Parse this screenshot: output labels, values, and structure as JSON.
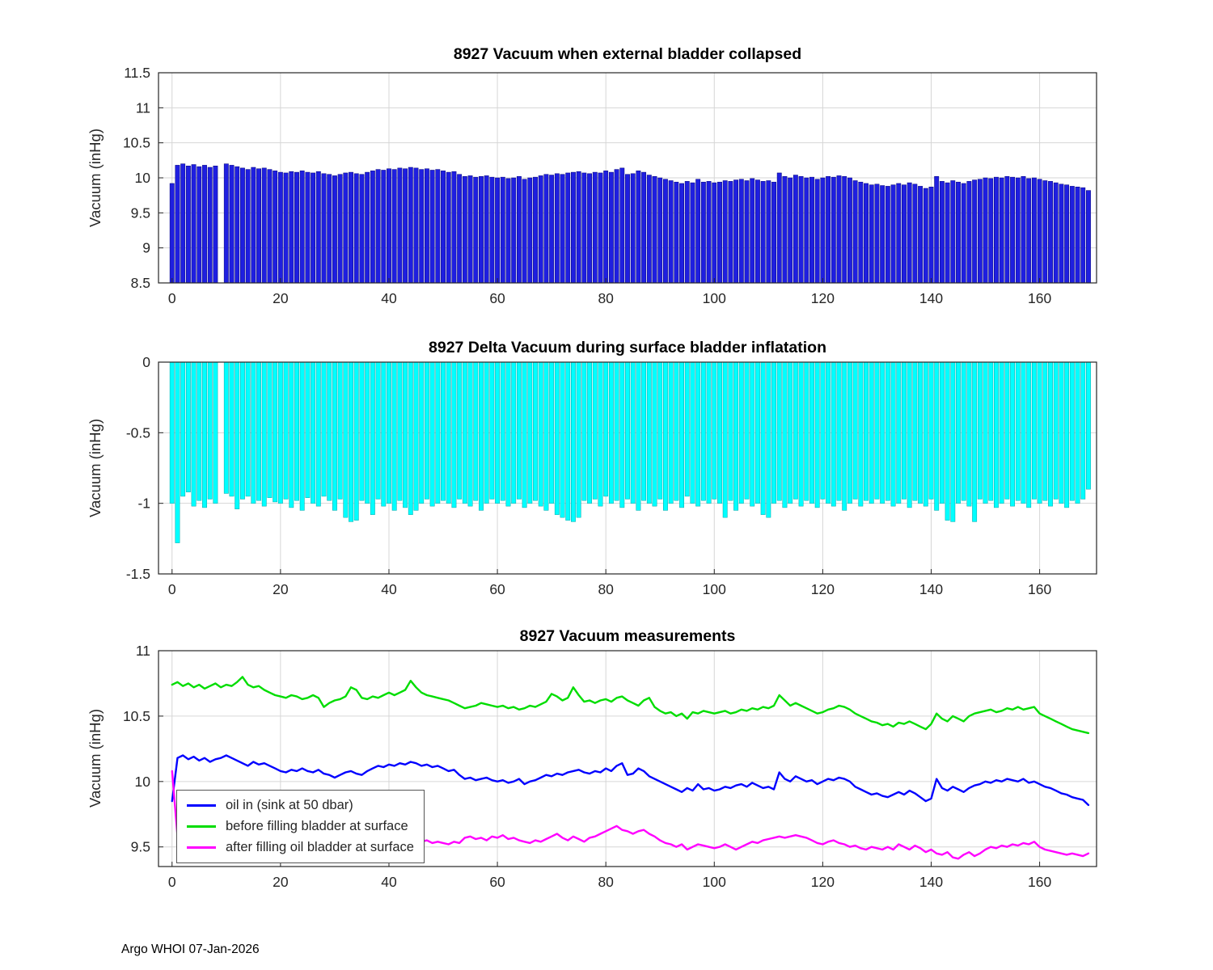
{
  "style": {
    "background": "#ffffff",
    "grid_color": "#d6d6d6",
    "axis_color": "#262626",
    "title_color": "#000000"
  },
  "footer": {
    "text": "Argo WHOI 07-Jan-2026"
  },
  "chart_data": [
    {
      "type": "bar",
      "title": "8927 Vacuum when external bladder collapsed",
      "ylabel": "Vacuum (inHg)",
      "xlabel": "",
      "xlim": [
        -2.5,
        170.5
      ],
      "ylim": [
        8.5,
        11.5
      ],
      "xticks": [
        0,
        20,
        40,
        60,
        80,
        100,
        120,
        140,
        160
      ],
      "yticks": [
        8.5,
        9,
        9.5,
        10,
        10.5,
        11,
        11.5
      ],
      "grid": true,
      "baseline": 8.5,
      "color": "#1f1fe0",
      "edge_color": "#00007a",
      "values": [
        9.92,
        10.18,
        10.2,
        10.17,
        10.19,
        10.16,
        10.18,
        10.15,
        10.17,
        null,
        10.2,
        10.18,
        10.16,
        10.14,
        10.12,
        10.15,
        10.13,
        10.14,
        10.12,
        10.1,
        10.08,
        10.07,
        10.09,
        10.08,
        10.1,
        10.08,
        10.07,
        10.09,
        10.06,
        10.05,
        10.03,
        10.05,
        10.07,
        10.08,
        10.06,
        10.05,
        10.08,
        10.1,
        10.12,
        10.11,
        10.13,
        10.12,
        10.14,
        10.13,
        10.15,
        10.14,
        10.12,
        10.13,
        10.11,
        10.12,
        10.1,
        10.08,
        10.09,
        10.05,
        10.02,
        10.03,
        10.01,
        10.02,
        10.03,
        10.01,
        10.0,
        10.01,
        9.99,
        10.0,
        10.02,
        9.98,
        10.0,
        10.01,
        10.03,
        10.05,
        10.04,
        10.06,
        10.05,
        10.07,
        10.08,
        10.09,
        10.07,
        10.06,
        10.08,
        10.07,
        10.1,
        10.08,
        10.12,
        10.14,
        10.05,
        10.06,
        10.1,
        10.08,
        10.04,
        10.02,
        10.0,
        9.98,
        9.96,
        9.94,
        9.92,
        9.95,
        9.93,
        9.98,
        9.94,
        9.95,
        9.93,
        9.94,
        9.96,
        9.95,
        9.97,
        9.98,
        9.96,
        9.99,
        9.97,
        9.95,
        9.96,
        9.94,
        10.07,
        10.02,
        10.0,
        10.04,
        10.02,
        10.0,
        10.01,
        9.98,
        10.0,
        10.02,
        10.01,
        10.03,
        10.02,
        10.0,
        9.96,
        9.94,
        9.92,
        9.9,
        9.91,
        9.89,
        9.88,
        9.9,
        9.92,
        9.9,
        9.93,
        9.91,
        9.88,
        9.85,
        9.87,
        10.02,
        9.95,
        9.93,
        9.96,
        9.94,
        9.92,
        9.95,
        9.97,
        9.98,
        10.0,
        9.99,
        10.01,
        10.0,
        10.02,
        10.01,
        10.0,
        10.02,
        9.99,
        10.0,
        9.98,
        9.96,
        9.95,
        9.93,
        9.91,
        9.9,
        9.88,
        9.87,
        9.86,
        9.82
      ]
    },
    {
      "type": "bar",
      "title": "8927 Delta Vacuum during surface bladder inflatation",
      "ylabel": "Vacuum (inHg)",
      "xlabel": "",
      "xlim": [
        -2.5,
        170.5
      ],
      "ylim": [
        -1.5,
        0
      ],
      "xticks": [
        0,
        20,
        40,
        60,
        80,
        100,
        120,
        140,
        160
      ],
      "yticks": [
        0,
        -0.5,
        -1,
        -1.5
      ],
      "grid": true,
      "baseline": 0,
      "color": "#00ffff",
      "edge_color": "#00a8a8",
      "values": [
        -1.0,
        -1.28,
        -0.95,
        -0.92,
        -1.02,
        -0.98,
        -1.03,
        -0.97,
        -1.0,
        null,
        -0.93,
        -0.95,
        -1.04,
        -0.97,
        -0.95,
        -1.0,
        -0.98,
        -1.02,
        -0.96,
        -0.99,
        -1.0,
        -0.97,
        -1.03,
        -0.98,
        -1.05,
        -0.96,
        -1.0,
        -1.02,
        -0.95,
        -0.98,
        -1.05,
        -0.97,
        -1.1,
        -1.13,
        -1.12,
        -0.98,
        -1.0,
        -1.08,
        -0.97,
        -1.02,
        -1.0,
        -1.05,
        -0.98,
        -1.03,
        -1.08,
        -1.05,
        -1.0,
        -0.97,
        -1.02,
        -1.0,
        -0.98,
        -1.0,
        -1.03,
        -0.97,
        -1.0,
        -1.02,
        -0.98,
        -1.05,
        -1.0,
        -0.97,
        -1.0,
        -0.98,
        -1.02,
        -1.0,
        -0.97,
        -1.03,
        -1.0,
        -0.98,
        -1.02,
        -1.05,
        -1.0,
        -1.08,
        -1.1,
        -1.12,
        -1.13,
        -1.1,
        -0.98,
        -1.0,
        -0.97,
        -1.02,
        -0.95,
        -1.0,
        -0.98,
        -1.03,
        -0.97,
        -1.0,
        -1.05,
        -0.98,
        -1.0,
        -1.02,
        -0.97,
        -1.05,
        -1.0,
        -0.98,
        -1.03,
        -0.95,
        -1.0,
        -1.02,
        -0.98,
        -1.0,
        -0.97,
        -1.0,
        -1.1,
        -0.98,
        -1.05,
        -1.0,
        -0.97,
        -1.02,
        -1.0,
        -1.08,
        -1.1,
        -1.0,
        -0.98,
        -1.03,
        -1.0,
        -0.97,
        -1.02,
        -0.98,
        -1.0,
        -1.03,
        -0.97,
        -1.0,
        -1.02,
        -0.98,
        -1.05,
        -1.0,
        -0.97,
        -1.02,
        -0.98,
        -1.0,
        -0.97,
        -1.0,
        -0.98,
        -1.02,
        -1.0,
        -0.97,
        -1.03,
        -0.98,
        -1.0,
        -1.02,
        -0.97,
        -1.05,
        -1.0,
        -1.12,
        -1.13,
        -1.0,
        -0.98,
        -1.02,
        -1.13,
        -0.97,
        -1.0,
        -0.98,
        -1.03,
        -1.0,
        -0.97,
        -1.02,
        -0.98,
        -1.0,
        -1.03,
        -0.97,
        -1.0,
        -0.98,
        -1.02,
        -0.97,
        -1.0,
        -1.03,
        -0.98,
        -1.0,
        -0.97,
        -0.9
      ]
    },
    {
      "type": "line",
      "title": "8927 Vacuum measurements",
      "ylabel": "Vacuum (inHg)",
      "xlabel": "",
      "xlim": [
        -2.5,
        170.5
      ],
      "ylim": [
        9.35,
        11
      ],
      "xticks": [
        0,
        20,
        40,
        60,
        80,
        100,
        120,
        140,
        160
      ],
      "yticks": [
        9.5,
        10,
        10.5,
        11
      ],
      "grid": true,
      "legend_position": "southwest",
      "series": [
        {
          "name": "oil in (sink at 50 dbar)",
          "color": "#0000ff",
          "values": [
            9.85,
            10.18,
            10.2,
            10.17,
            10.19,
            10.16,
            10.18,
            10.15,
            10.17,
            10.18,
            10.2,
            10.18,
            10.16,
            10.14,
            10.12,
            10.15,
            10.13,
            10.14,
            10.12,
            10.1,
            10.08,
            10.07,
            10.09,
            10.08,
            10.1,
            10.08,
            10.07,
            10.09,
            10.06,
            10.05,
            10.03,
            10.05,
            10.07,
            10.08,
            10.06,
            10.05,
            10.08,
            10.1,
            10.12,
            10.11,
            10.13,
            10.12,
            10.14,
            10.13,
            10.15,
            10.14,
            10.12,
            10.13,
            10.11,
            10.12,
            10.1,
            10.08,
            10.09,
            10.05,
            10.02,
            10.03,
            10.01,
            10.02,
            10.03,
            10.01,
            10.0,
            10.01,
            9.99,
            10.0,
            10.02,
            9.98,
            10.0,
            10.01,
            10.03,
            10.05,
            10.04,
            10.06,
            10.05,
            10.07,
            10.08,
            10.09,
            10.07,
            10.06,
            10.08,
            10.07,
            10.1,
            10.08,
            10.12,
            10.14,
            10.05,
            10.06,
            10.1,
            10.08,
            10.04,
            10.02,
            10.0,
            9.98,
            9.96,
            9.94,
            9.92,
            9.95,
            9.93,
            9.98,
            9.94,
            9.95,
            9.93,
            9.94,
            9.96,
            9.95,
            9.97,
            9.98,
            9.96,
            9.99,
            9.97,
            9.95,
            9.96,
            9.94,
            10.07,
            10.02,
            10.0,
            10.04,
            10.02,
            10.0,
            10.01,
            9.98,
            10.0,
            10.02,
            10.01,
            10.03,
            10.02,
            10.0,
            9.96,
            9.94,
            9.92,
            9.9,
            9.91,
            9.89,
            9.88,
            9.9,
            9.92,
            9.9,
            9.93,
            9.91,
            9.88,
            9.85,
            9.87,
            10.02,
            9.95,
            9.93,
            9.96,
            9.94,
            9.92,
            9.95,
            9.97,
            9.98,
            10.0,
            9.99,
            10.01,
            10.0,
            10.02,
            10.01,
            10.0,
            10.02,
            9.99,
            10.0,
            9.98,
            9.96,
            9.95,
            9.93,
            9.91,
            9.9,
            9.88,
            9.87,
            9.86,
            9.82
          ]
        },
        {
          "name": "before filling bladder at surface",
          "color": "#00dd00",
          "values": [
            10.74,
            10.76,
            10.73,
            10.75,
            10.72,
            10.74,
            10.71,
            10.73,
            10.75,
            10.72,
            10.74,
            10.73,
            10.76,
            10.8,
            10.74,
            10.72,
            10.73,
            10.7,
            10.68,
            10.66,
            10.65,
            10.64,
            10.66,
            10.65,
            10.63,
            10.64,
            10.66,
            10.64,
            10.57,
            10.6,
            10.62,
            10.63,
            10.65,
            10.72,
            10.7,
            10.64,
            10.63,
            10.65,
            10.64,
            10.66,
            10.68,
            10.66,
            10.68,
            10.7,
            10.77,
            10.72,
            10.68,
            10.66,
            10.65,
            10.64,
            10.63,
            10.62,
            10.6,
            10.58,
            10.56,
            10.57,
            10.58,
            10.6,
            10.59,
            10.58,
            10.57,
            10.58,
            10.56,
            10.57,
            10.55,
            10.56,
            10.58,
            10.57,
            10.59,
            10.61,
            10.67,
            10.65,
            10.62,
            10.64,
            10.72,
            10.66,
            10.61,
            10.62,
            10.6,
            10.62,
            10.63,
            10.61,
            10.64,
            10.65,
            10.62,
            10.6,
            10.58,
            10.62,
            10.64,
            10.57,
            10.54,
            10.52,
            10.53,
            10.5,
            10.52,
            10.48,
            10.53,
            10.52,
            10.54,
            10.53,
            10.52,
            10.53,
            10.54,
            10.52,
            10.53,
            10.55,
            10.54,
            10.56,
            10.55,
            10.57,
            10.56,
            10.58,
            10.66,
            10.62,
            10.58,
            10.6,
            10.58,
            10.56,
            10.54,
            10.52,
            10.53,
            10.55,
            10.56,
            10.58,
            10.57,
            10.55,
            10.52,
            10.5,
            10.48,
            10.46,
            10.45,
            10.43,
            10.44,
            10.42,
            10.45,
            10.44,
            10.46,
            10.44,
            10.42,
            10.4,
            10.44,
            10.52,
            10.48,
            10.46,
            10.5,
            10.48,
            10.46,
            10.5,
            10.52,
            10.53,
            10.54,
            10.55,
            10.53,
            10.54,
            10.56,
            10.55,
            10.57,
            10.55,
            10.56,
            10.57,
            10.52,
            10.5,
            10.48,
            10.46,
            10.44,
            10.42,
            10.4,
            10.39,
            10.38,
            10.37
          ]
        },
        {
          "name": "after filling oil bladder at surface",
          "color": "#ff00ff",
          "values": [
            10.08,
            9.58,
            9.57,
            9.56,
            9.58,
            9.57,
            9.55,
            9.57,
            9.56,
            9.58,
            9.57,
            9.58,
            9.56,
            9.59,
            9.57,
            9.55,
            9.56,
            9.54,
            9.55,
            9.56,
            9.55,
            9.54,
            9.56,
            9.55,
            9.53,
            9.54,
            9.55,
            9.53,
            9.52,
            9.54,
            9.53,
            9.55,
            9.54,
            9.52,
            9.5,
            9.53,
            9.54,
            9.56,
            9.55,
            9.54,
            9.55,
            9.56,
            9.54,
            9.55,
            9.57,
            9.56,
            9.54,
            9.55,
            9.53,
            9.54,
            9.53,
            9.52,
            9.54,
            9.53,
            9.57,
            9.58,
            9.56,
            9.57,
            9.55,
            9.58,
            9.57,
            9.59,
            9.56,
            9.57,
            9.55,
            9.54,
            9.53,
            9.55,
            9.54,
            9.56,
            9.58,
            9.6,
            9.57,
            9.55,
            9.58,
            9.56,
            9.54,
            9.57,
            9.58,
            9.6,
            9.62,
            9.64,
            9.66,
            9.63,
            9.62,
            9.6,
            9.62,
            9.63,
            9.6,
            9.58,
            9.55,
            9.53,
            9.52,
            9.5,
            9.52,
            9.48,
            9.5,
            9.52,
            9.51,
            9.5,
            9.49,
            9.5,
            9.52,
            9.5,
            9.48,
            9.5,
            9.52,
            9.54,
            9.53,
            9.55,
            9.56,
            9.57,
            9.58,
            9.57,
            9.58,
            9.59,
            9.58,
            9.57,
            9.55,
            9.53,
            9.52,
            9.54,
            9.55,
            9.53,
            9.52,
            9.5,
            9.51,
            9.49,
            9.48,
            9.5,
            9.49,
            9.48,
            9.5,
            9.48,
            9.52,
            9.5,
            9.48,
            9.51,
            9.49,
            9.46,
            9.48,
            9.45,
            9.44,
            9.46,
            9.42,
            9.41,
            9.44,
            9.46,
            9.43,
            9.45,
            9.48,
            9.5,
            9.49,
            9.51,
            9.5,
            9.52,
            9.51,
            9.53,
            9.52,
            9.54,
            9.5,
            9.48,
            9.47,
            9.46,
            9.45,
            9.44,
            9.45,
            9.44,
            9.43,
            9.45
          ]
        }
      ]
    }
  ]
}
